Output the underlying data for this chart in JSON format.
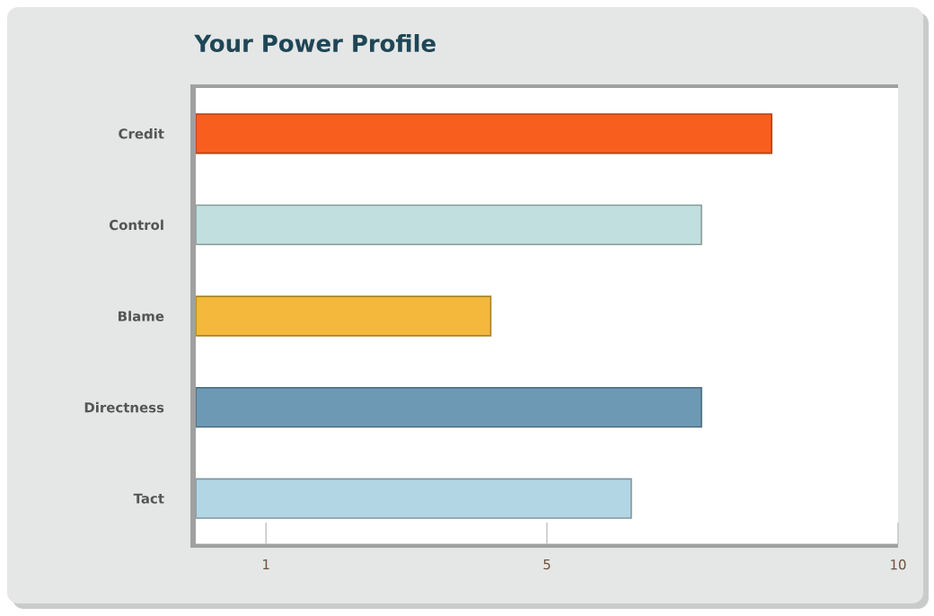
{
  "chart_data": {
    "type": "bar",
    "orientation": "horizontal",
    "title": "Your Power Profile",
    "categories": [
      "Credit",
      "Control",
      "Blame",
      "Directness",
      "Tact"
    ],
    "values": [
      8.2,
      7.2,
      4.2,
      7.2,
      6.2
    ],
    "colors": [
      "#f85f1e",
      "#c2dfdf",
      "#f3b83c",
      "#6e99b4",
      "#b3d6e5"
    ],
    "xlim": [
      0,
      10
    ],
    "xticks": [
      1,
      5,
      10
    ],
    "grid": false
  }
}
